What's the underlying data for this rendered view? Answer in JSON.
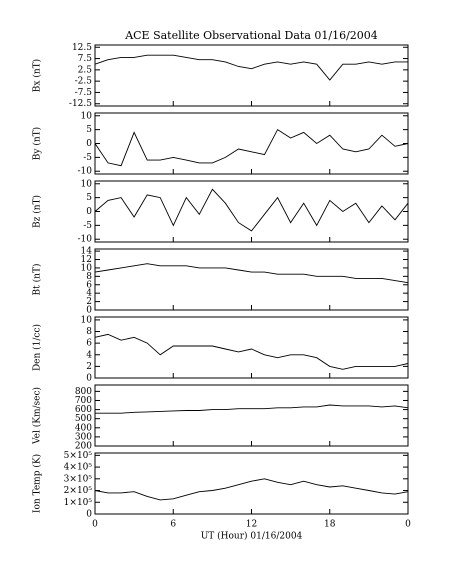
{
  "chart_data": [
    {
      "type": "line",
      "title": "ACE Satellite Observational Data   01/16/2004",
      "ylabel": "Bx (nT)",
      "x": [
        0,
        1,
        2,
        3,
        4,
        5,
        6,
        7,
        8,
        9,
        10,
        11,
        12,
        13,
        14,
        15,
        16,
        17,
        18,
        19,
        20,
        21,
        22,
        23,
        24
      ],
      "values": [
        5,
        7,
        8,
        8,
        9,
        9,
        9,
        8,
        7,
        7,
        6,
        4,
        3,
        5,
        6,
        5,
        6,
        5,
        -2,
        5,
        5,
        6,
        5,
        6,
        6
      ],
      "xlim": [
        0,
        24
      ],
      "ylim": [
        -13.5,
        13.5
      ],
      "yticks": [
        12.5,
        7.5,
        2.5,
        -2.5,
        -7.5,
        -12.5
      ],
      "color": "#000000"
    },
    {
      "type": "line",
      "ylabel": "By (nT)",
      "x": [
        0,
        1,
        2,
        3,
        4,
        5,
        6,
        7,
        8,
        9,
        10,
        11,
        12,
        13,
        14,
        15,
        16,
        17,
        18,
        19,
        20,
        21,
        22,
        23,
        24
      ],
      "values": [
        0,
        -7,
        -8,
        4,
        -6,
        -6,
        -5,
        -6,
        -7,
        -7,
        -5,
        -2,
        -3,
        -4,
        5,
        2,
        4,
        0,
        3,
        -2,
        -3,
        -2,
        3,
        -1,
        0
      ],
      "xlim": [
        0,
        24
      ],
      "ylim": [
        -11,
        11
      ],
      "yticks": [
        10,
        5,
        0,
        -5,
        -10
      ],
      "color": "#000000"
    },
    {
      "type": "line",
      "ylabel": "Bz (nT)",
      "x": [
        0,
        1,
        2,
        3,
        4,
        5,
        6,
        7,
        8,
        9,
        10,
        11,
        12,
        13,
        14,
        15,
        16,
        17,
        18,
        19,
        20,
        21,
        22,
        23,
        24
      ],
      "values": [
        0,
        4,
        5,
        -2,
        6,
        5,
        -5,
        5,
        -1,
        8,
        3,
        -4,
        -7,
        -1,
        5,
        -4,
        3,
        -5,
        4,
        0,
        3,
        -4,
        2,
        -3,
        3
      ],
      "xlim": [
        0,
        24
      ],
      "ylim": [
        -11,
        11
      ],
      "yticks": [
        10,
        5,
        0,
        -5,
        -10
      ],
      "color": "#000000"
    },
    {
      "type": "line",
      "ylabel": "Bt (nT)",
      "x": [
        0,
        1,
        2,
        3,
        4,
        5,
        6,
        7,
        8,
        9,
        10,
        11,
        12,
        13,
        14,
        15,
        16,
        17,
        18,
        19,
        20,
        21,
        22,
        23,
        24
      ],
      "values": [
        9,
        9.5,
        10,
        10.5,
        11,
        10.5,
        10.5,
        10.5,
        10,
        10,
        10,
        9.5,
        9,
        9,
        8.5,
        8.5,
        8.5,
        8,
        8,
        8,
        7.5,
        7.5,
        7.5,
        7,
        6.5
      ],
      "xlim": [
        0,
        24
      ],
      "ylim": [
        0,
        14.5
      ],
      "yticks": [
        0,
        2,
        4,
        6,
        8,
        10,
        12,
        14
      ],
      "color": "#000000"
    },
    {
      "type": "line",
      "ylabel": "Den (1/cc)",
      "x": [
        0,
        1,
        2,
        3,
        4,
        5,
        6,
        7,
        8,
        9,
        10,
        11,
        12,
        13,
        14,
        15,
        16,
        17,
        18,
        19,
        20,
        21,
        22,
        23,
        24
      ],
      "values": [
        7,
        7.5,
        6.5,
        7,
        6,
        4,
        5.5,
        5.5,
        5.5,
        5.5,
        5,
        4.5,
        5,
        4,
        3.5,
        4,
        4,
        3.5,
        2,
        1.5,
        2,
        2,
        2,
        2,
        2.5
      ],
      "xlim": [
        0,
        24
      ],
      "ylim": [
        0,
        10.5
      ],
      "yticks": [
        0,
        2,
        4,
        6,
        8,
        10
      ],
      "color": "#000000"
    },
    {
      "type": "line",
      "ylabel": "Vel (Km/sec)",
      "x": [
        0,
        1,
        2,
        3,
        4,
        5,
        6,
        7,
        8,
        9,
        10,
        11,
        12,
        13,
        14,
        15,
        16,
        17,
        18,
        19,
        20,
        21,
        22,
        23,
        24
      ],
      "values": [
        560,
        560,
        560,
        570,
        575,
        580,
        585,
        590,
        590,
        600,
        600,
        610,
        610,
        610,
        620,
        620,
        630,
        630,
        650,
        640,
        640,
        640,
        630,
        640,
        620
      ],
      "xlim": [
        0,
        24
      ],
      "ylim": [
        200,
        870
      ],
      "yticks": [
        200,
        300,
        400,
        500,
        600,
        700,
        800
      ],
      "color": "#000000"
    },
    {
      "type": "line",
      "ylabel": "Ion Temp (K)",
      "xlabel": "UT (Hour)  01/16/2004",
      "x": [
        0,
        1,
        2,
        3,
        4,
        5,
        6,
        7,
        8,
        9,
        10,
        11,
        12,
        13,
        14,
        15,
        16,
        17,
        18,
        19,
        20,
        21,
        22,
        23,
        24
      ],
      "values": [
        200000,
        180000,
        180000,
        190000,
        150000,
        120000,
        130000,
        160000,
        190000,
        200000,
        220000,
        250000,
        280000,
        300000,
        270000,
        250000,
        280000,
        250000,
        230000,
        240000,
        220000,
        200000,
        180000,
        170000,
        190000
      ],
      "xlim": [
        0,
        24
      ],
      "ylim": [
        0,
        520000
      ],
      "yticks": [
        0,
        {
          "value": 100000,
          "label": "1×10⁵"
        },
        {
          "value": 200000,
          "label": "2×10⁵"
        },
        {
          "value": 300000,
          "label": "3×10⁵"
        },
        {
          "value": 400000,
          "label": "4×10⁵"
        },
        {
          "value": 500000,
          "label": "5×10⁵"
        }
      ],
      "xticks": [
        0,
        6,
        12,
        18,
        {
          "value": 24,
          "label": "0"
        }
      ],
      "color": "#000000"
    }
  ]
}
